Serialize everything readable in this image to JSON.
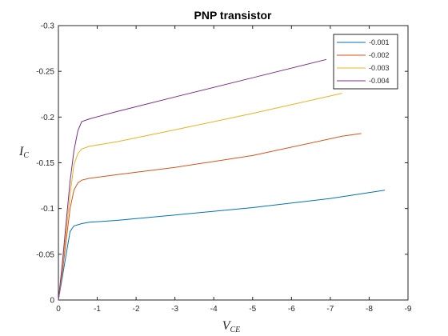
{
  "chart_data": {
    "type": "line",
    "title": "PNP transistor",
    "xlabel": {
      "main": "V",
      "sub": "CE"
    },
    "ylabel": {
      "main": "I",
      "sub": "C"
    },
    "xlim": [
      0,
      -9
    ],
    "ylim": [
      0,
      -0.3
    ],
    "xticks": [
      0,
      -1,
      -2,
      -3,
      -4,
      -5,
      -6,
      -7,
      -8,
      -9
    ],
    "yticks": [
      0,
      -0.05,
      -0.1,
      -0.15,
      -0.2,
      -0.25,
      -0.3
    ],
    "xtick_labels": [
      "0",
      "-1",
      "-2",
      "-3",
      "-4",
      "-5",
      "-6",
      "-7",
      "-8",
      "-9"
    ],
    "ytick_labels": [
      "0",
      "-0.05",
      "-0.1",
      "-0.15",
      "-0.2",
      "-0.25",
      "-0.3"
    ],
    "grid": false,
    "legend_position": "top-right",
    "series": [
      {
        "name": "-0.001",
        "color": "#0072bd",
        "x": [
          0,
          -0.1,
          -0.2,
          -0.3,
          -0.4,
          -0.6,
          -0.8,
          -1.5,
          -3,
          -5,
          -7,
          -8.4
        ],
        "y": [
          0,
          -0.025,
          -0.05,
          -0.075,
          -0.081,
          -0.0835,
          -0.085,
          -0.087,
          -0.093,
          -0.101,
          -0.111,
          -0.12
        ]
      },
      {
        "name": "-0.002",
        "color": "#d95319",
        "x": [
          0,
          -0.1,
          -0.2,
          -0.3,
          -0.4,
          -0.5,
          -0.6,
          -0.8,
          -1.5,
          -3,
          -5,
          -7.3,
          -7.8
        ],
        "y": [
          0,
          -0.03,
          -0.065,
          -0.1,
          -0.12,
          -0.128,
          -0.131,
          -0.133,
          -0.137,
          -0.145,
          -0.158,
          -0.179,
          -0.182
        ]
      },
      {
        "name": "-0.003",
        "color": "#edb120",
        "x": [
          0,
          -0.1,
          -0.2,
          -0.3,
          -0.4,
          -0.5,
          -0.6,
          -0.8,
          -1.5,
          -3,
          -5,
          -7.3
        ],
        "y": [
          0,
          -0.035,
          -0.075,
          -0.115,
          -0.148,
          -0.16,
          -0.165,
          -0.168,
          -0.173,
          -0.186,
          -0.204,
          -0.226
        ]
      },
      {
        "name": "-0.004",
        "color": "#7e2f8e",
        "x": [
          0,
          -0.1,
          -0.2,
          -0.3,
          -0.4,
          -0.5,
          -0.6,
          -0.8,
          -1.5,
          -3,
          -5,
          -6.9
        ],
        "y": [
          0,
          -0.04,
          -0.085,
          -0.13,
          -0.163,
          -0.185,
          -0.195,
          -0.198,
          -0.206,
          -0.222,
          -0.243,
          -0.263
        ]
      }
    ]
  }
}
